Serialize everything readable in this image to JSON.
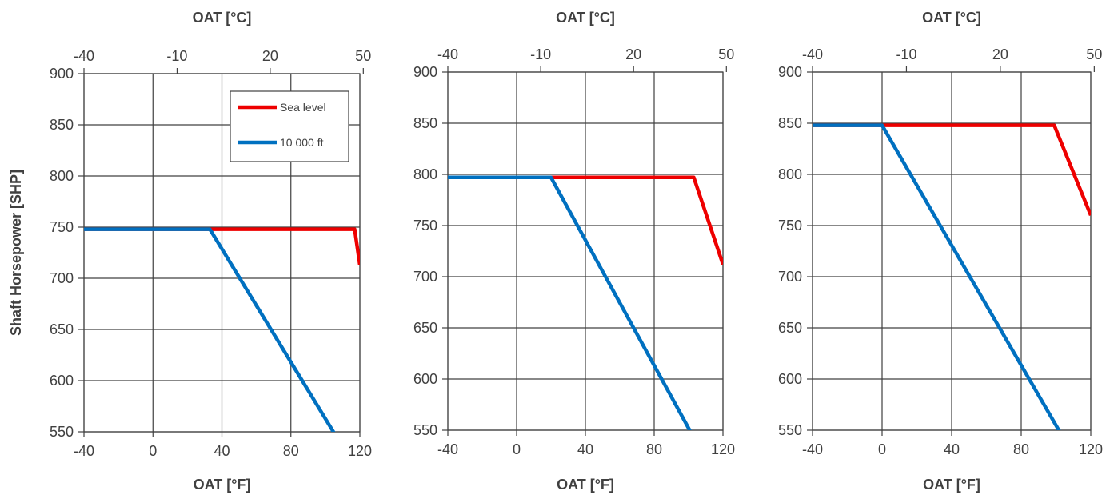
{
  "chart_data": [
    {
      "type": "line",
      "panel": "left",
      "ylabel": "Shaft Horsepower [SHP]",
      "top_xlabel": "OAT [°C]",
      "bottom_xlabel": "OAT [°F]",
      "xlim_f": [
        -40,
        120
      ],
      "ylim": [
        550,
        900
      ],
      "x_ticks_f": [
        -40,
        0,
        40,
        80,
        120
      ],
      "x_ticks_c": [
        -40,
        -10,
        20,
        50
      ],
      "y_ticks": [
        550,
        600,
        650,
        700,
        750,
        800,
        850,
        900
      ],
      "grid": true,
      "legend": "top-right",
      "series": [
        {
          "name": "Sea level",
          "color": "#ee0000",
          "x": [
            -40,
            117,
            120
          ],
          "y": [
            748,
            748,
            713
          ]
        },
        {
          "name": "10 000 ft",
          "color": "#0070c0",
          "x": [
            -40,
            33,
            105
          ],
          "y": [
            748,
            748,
            549
          ]
        }
      ]
    },
    {
      "type": "line",
      "panel": "middle",
      "top_xlabel": "OAT [°C]",
      "bottom_xlabel": "OAT [°F]",
      "xlim_f": [
        -40,
        120
      ],
      "ylim": [
        550,
        900
      ],
      "x_ticks_f": [
        -40,
        0,
        40,
        80,
        120
      ],
      "x_ticks_c": [
        -40,
        -10,
        20,
        50
      ],
      "y_ticks": [
        550,
        600,
        650,
        700,
        750,
        800,
        850,
        900
      ],
      "grid": true,
      "series": [
        {
          "name": "Sea level",
          "color": "#ee0000",
          "x": [
            -40,
            103,
            120
          ],
          "y": [
            797,
            797,
            712
          ]
        },
        {
          "name": "10 000 ft",
          "color": "#0070c0",
          "x": [
            -40,
            20,
            101
          ],
          "y": [
            797,
            797,
            549
          ]
        }
      ]
    },
    {
      "type": "line",
      "panel": "right",
      "top_xlabel": "OAT [°C]",
      "bottom_xlabel": "OAT [°F]",
      "xlim_f": [
        -40,
        120
      ],
      "ylim": [
        550,
        900
      ],
      "x_ticks_f": [
        -40,
        0,
        40,
        80,
        120
      ],
      "x_ticks_c": [
        -40,
        -10,
        20,
        50
      ],
      "y_ticks": [
        550,
        600,
        650,
        700,
        750,
        800,
        850,
        900
      ],
      "grid": true,
      "series": [
        {
          "name": "Sea level",
          "color": "#ee0000",
          "x": [
            -40,
            99,
            120
          ],
          "y": [
            848,
            848,
            760
          ]
        },
        {
          "name": "10 000 ft",
          "color": "#0070c0",
          "x": [
            -40,
            0,
            102
          ],
          "y": [
            848,
            848,
            549
          ]
        }
      ]
    }
  ]
}
